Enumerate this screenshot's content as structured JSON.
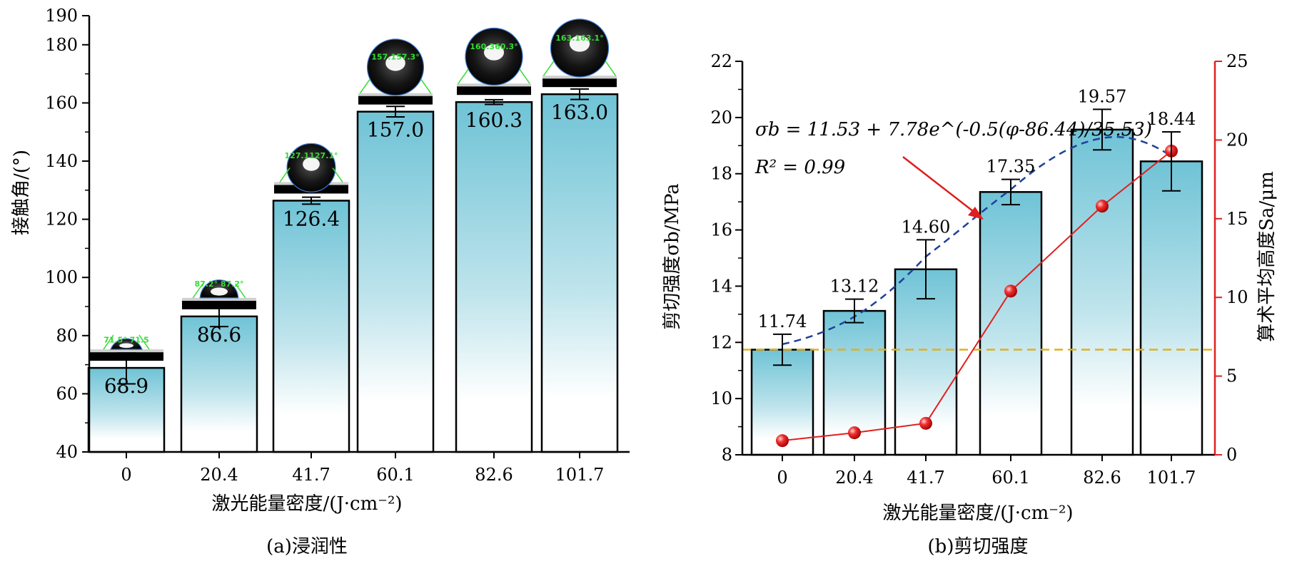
{
  "chart_data": [
    {
      "type": "bar",
      "caption": "(a)浸润性",
      "xlabel": "激光能量密度/(J·cm⁻²)",
      "ylabel": "接触角/(°)",
      "categories": [
        "0",
        "20.4",
        "41.7",
        "60.1",
        "82.6",
        "101.7"
      ],
      "values": [
        68.9,
        86.6,
        126.4,
        157.0,
        160.3,
        163.0
      ],
      "value_labels": [
        "68.9",
        "86.6",
        "126.4",
        "157.0",
        "160.3",
        "163.0"
      ],
      "errors": [
        5.5,
        3.5,
        1.2,
        1.8,
        0.8,
        1.8
      ],
      "droplet_labels": [
        "71.5° 71.5",
        "87.2° 87.2°",
        "127.1127.1°",
        "157.157.3°",
        "160.360.3°",
        "163.163.1°"
      ],
      "ylim": [
        40,
        190
      ],
      "yticks": [
        "40",
        "60",
        "80",
        "100",
        "120",
        "140",
        "160",
        "180",
        "190"
      ],
      "bar_color": "#6fc3d6"
    },
    {
      "type": "bar",
      "caption": "(b)剪切强度",
      "xlabel": "激光能量密度/(J·cm⁻²)",
      "ylabel": "剪切强度σb/MPa",
      "y2label": "算术平均高度Sa/μm",
      "categories": [
        "0",
        "20.4",
        "41.7",
        "60.1",
        "82.6",
        "101.7"
      ],
      "values": [
        11.74,
        13.12,
        14.6,
        17.35,
        19.57,
        18.44
      ],
      "value_labels": [
        "11.74",
        "13.12",
        "14.60",
        "17.35",
        "19.57",
        "18.44"
      ],
      "errors": [
        0.55,
        0.42,
        1.05,
        0.45,
        0.72,
        1.05
      ],
      "ylim": [
        8,
        22
      ],
      "yticks": [
        "8",
        "10",
        "12",
        "14",
        "16",
        "18",
        "20",
        "22"
      ],
      "y2lim": [
        0,
        25
      ],
      "y2ticks": [
        "0",
        "5",
        "10",
        "15",
        "20",
        "25"
      ],
      "series_sa": [
        0.9,
        1.4,
        2.0,
        10.4,
        15.8,
        19.3
      ],
      "reference_line_y": 11.74,
      "fit_equation": "σb = 11.53 + 7.78e^(-0.5(φ-86.44)/35.53)",
      "fit_r2": "R² = 0.99",
      "bar_color": "#6fc3d6",
      "line_color": "#e02020",
      "fit_color": "#1f3f99",
      "ref_color": "#e0b020"
    }
  ]
}
